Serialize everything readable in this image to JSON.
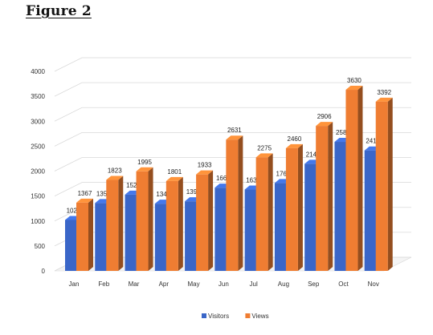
{
  "figure_title": "Figure 2",
  "chart_data": {
    "type": "bar",
    "title": "",
    "xlabel": "",
    "ylabel": "",
    "categories": [
      "Jan",
      "Feb",
      "Mar",
      "Apr",
      "May",
      "Jun",
      "Jul",
      "Aug",
      "Sep",
      "Oct",
      "Nov"
    ],
    "series": [
      {
        "name": "Visitors",
        "color": "#3a66c8",
        "values": [
          1021,
          1359,
          1528,
          1347,
          1395,
          1668,
          1630,
          1761,
          2146,
          2586,
          2414
        ]
      },
      {
        "name": "Views",
        "color": "#ef7d32",
        "values": [
          1367,
          1823,
          1995,
          1801,
          1933,
          2631,
          2275,
          2460,
          2906,
          3630,
          3392
        ]
      }
    ],
    "ylim": [
      0,
      4000
    ],
    "yticks": [
      "0",
      "500",
      "1000",
      "1500",
      "2000",
      "2500",
      "3000",
      "3500",
      "4000"
    ],
    "grid": true,
    "legend_position": "bottom",
    "style": "3d-clustered-column"
  }
}
